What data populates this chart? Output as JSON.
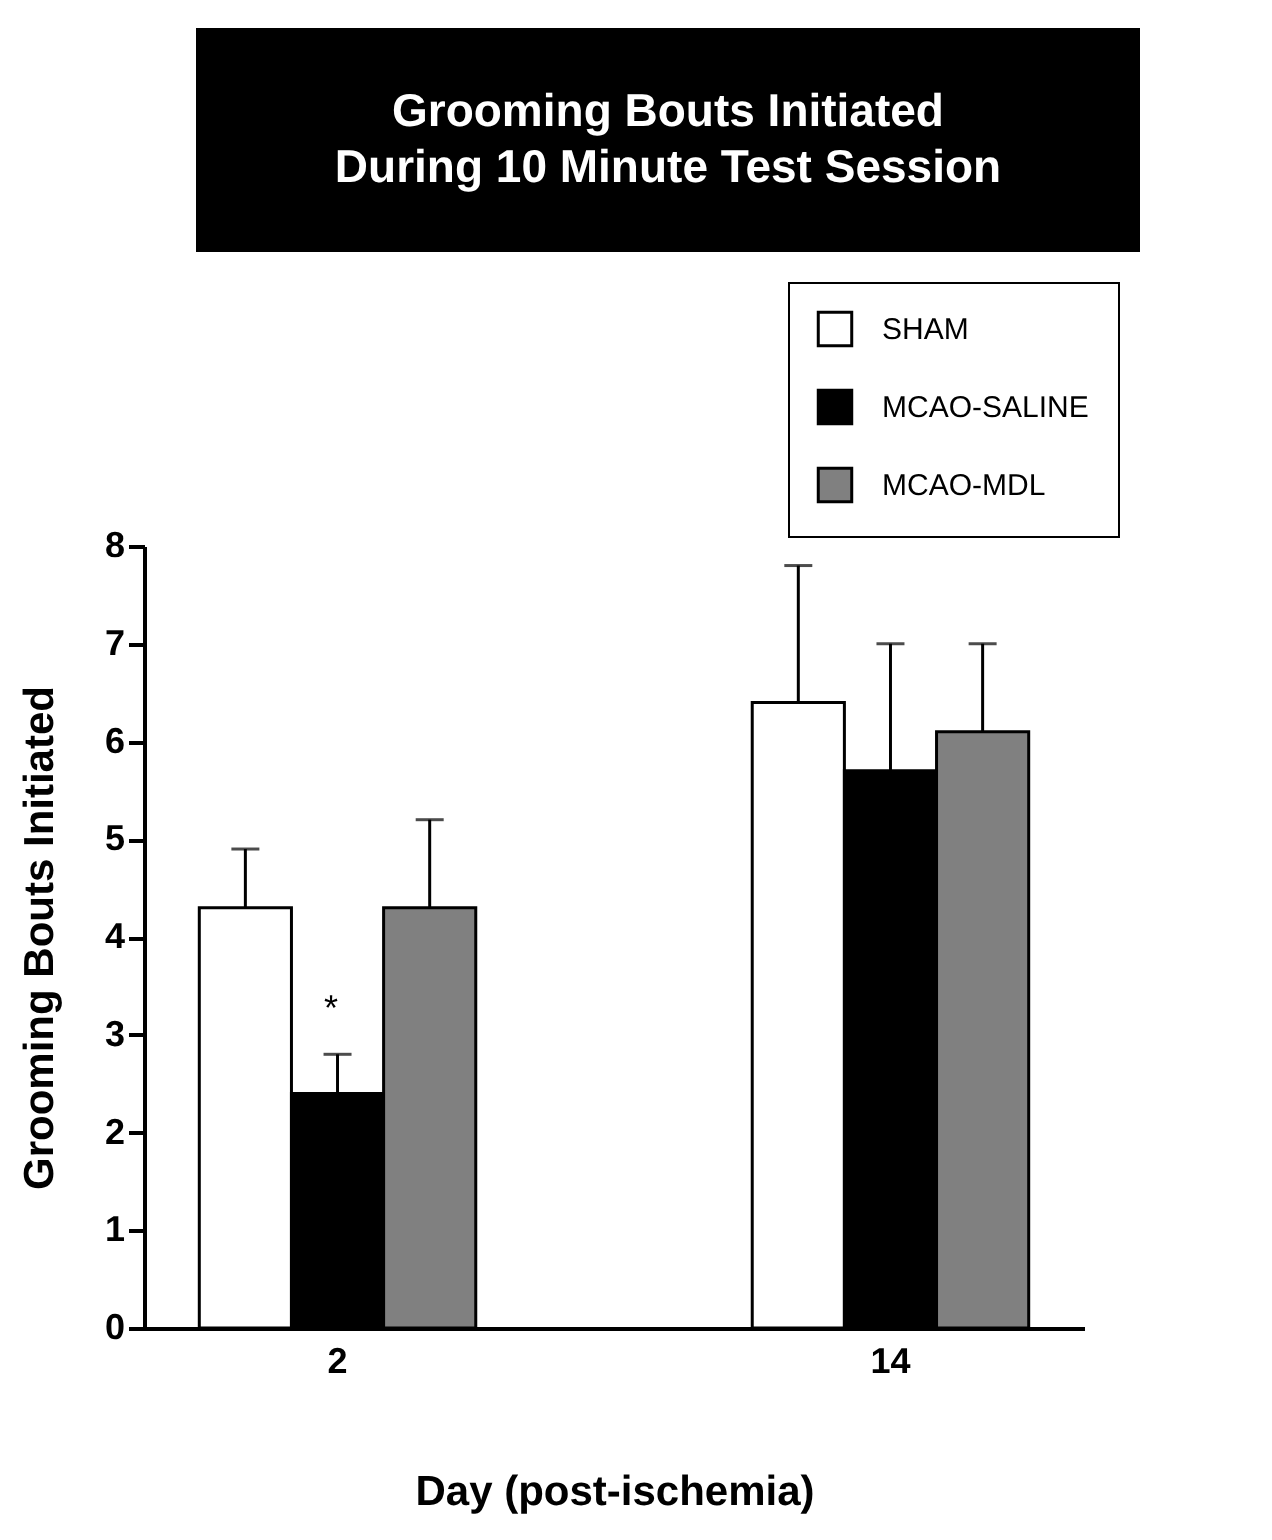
{
  "chart_data": {
    "type": "bar",
    "title": "Grooming Bouts Initiated\nDuring 10 Minute Test Session",
    "xlabel": "Day  (post-ischemia)",
    "ylabel": "Grooming Bouts Initiated",
    "categories": [
      "2",
      "14"
    ],
    "series": [
      {
        "name": "SHAM",
        "color": "#ffffff",
        "values": [
          4.3,
          6.4
        ],
        "errors": [
          [
            4.3,
            4.9
          ],
          [
            6.4,
            7.8
          ]
        ]
      },
      {
        "name": "MCAO-SALINE",
        "color": "#000000",
        "values": [
          2.4,
          5.7
        ],
        "errors": [
          [
            2.4,
            2.8
          ],
          [
            5.7,
            7.0
          ]
        ]
      },
      {
        "name": "MCAO-MDL",
        "color": "#808080",
        "values": [
          4.3,
          6.1
        ],
        "errors": [
          [
            4.3,
            5.2
          ],
          [
            6.1,
            7.0
          ]
        ]
      }
    ],
    "ylim": [
      0,
      8
    ],
    "yticks": [
      0,
      1,
      2,
      3,
      4,
      5,
      6,
      7,
      8
    ],
    "grid": false,
    "legend": "top right",
    "annotations": [
      "*"
    ]
  }
}
